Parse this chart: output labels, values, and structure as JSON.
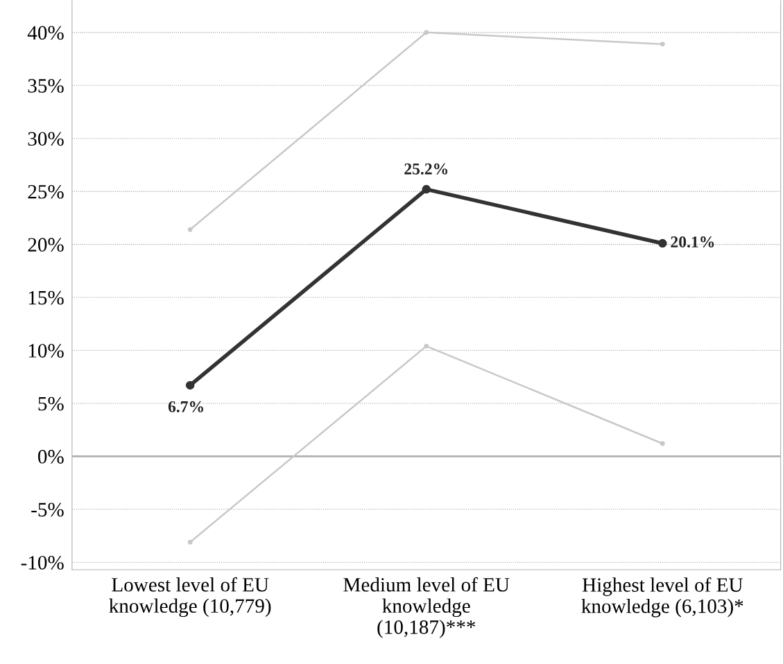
{
  "chart_data": {
    "type": "line",
    "categories": [
      "Lowest level of EU\nknowledge (10,779)",
      "Medium level of EU\nknowledge\n(10,187)***",
      "Highest level of EU\nknowledge (6,103)*"
    ],
    "series": [
      {
        "color": "#c8c8c8",
        "values": [
          21.4,
          40.0,
          38.9
        ]
      },
      {
        "color": "#c8c8c8",
        "values": [
          -8.1,
          10.4,
          1.2
        ]
      },
      {
        "color": "#333333",
        "values": [
          6.7,
          25.2,
          20.1
        ],
        "value_labels": [
          "6.7%",
          "25.2%",
          "20.1%"
        ]
      }
    ],
    "ylim": [
      -10.7,
      43
    ],
    "yticks": [
      {
        "value": -10,
        "label": "-10%"
      },
      {
        "value": -5,
        "label": "-5%"
      },
      {
        "value": 0,
        "label": "0%"
      },
      {
        "value": 5,
        "label": "5%"
      },
      {
        "value": 10,
        "label": "10%"
      },
      {
        "value": 15,
        "label": "15%"
      },
      {
        "value": 20,
        "label": "20%"
      },
      {
        "value": 25,
        "label": "25%"
      },
      {
        "value": 30,
        "label": "30%"
      },
      {
        "value": 35,
        "label": "35%"
      },
      {
        "value": 40,
        "label": "40%"
      }
    ],
    "ref_lines": [
      {
        "axis": "y",
        "value": 0,
        "color": "#b0b0b0",
        "line_style": "solid"
      }
    ],
    "grid": "y",
    "marker": "circle",
    "line_style": "solid"
  }
}
